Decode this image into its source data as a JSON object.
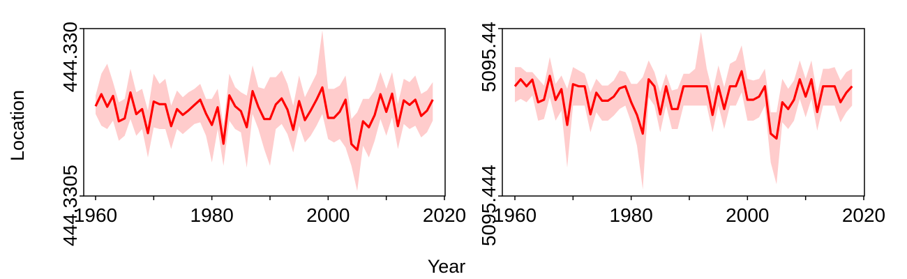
{
  "colors": {
    "line": "#ff0000",
    "band": "#ffcccc",
    "axis": "#000000",
    "background": "#ffffff"
  },
  "labels": {
    "xlabel": "Year",
    "ylabel": "Location"
  },
  "chart_data": [
    {
      "type": "line",
      "xlabel": "Year",
      "ylabel": "Location",
      "xlim": [
        1960,
        2020
      ],
      "ylim": [
        444.3305,
        444.33
      ],
      "x_ticks": [
        "1960",
        "1980",
        "2000",
        "2020"
      ],
      "y_ticks": [
        "444.330",
        "444.3305"
      ],
      "y_tick_labels_shown": [
        "444.330",
        "444.3305"
      ],
      "series": [
        {
          "x": [
            1960,
            1961,
            1962,
            1963,
            1964,
            1965,
            1966,
            1967,
            1968,
            1969,
            1970,
            1971,
            1972,
            1973,
            1974,
            1975,
            1976,
            1977,
            1978,
            1979,
            1980,
            1981,
            1982,
            1983,
            1984,
            1985,
            1986,
            1987,
            1988,
            1989,
            1990,
            1991,
            1992,
            1993,
            1994,
            1995,
            1996,
            1997,
            1998,
            1999,
            2000,
            2001,
            2002,
            2003,
            2004,
            2005,
            2006,
            2007,
            2008,
            2009,
            2010,
            2011,
            2012,
            2013,
            2014,
            2015,
            2016,
            2017,
            2018
          ],
          "y": [
            0.5363,
            0.6082,
            0.5328,
            0.5978,
            0.4462,
            0.4635,
            0.6189,
            0.4892,
            0.5192,
            0.3753,
            0.5642,
            0.5485,
            0.5485,
            0.4169,
            0.5191,
            0.4846,
            0.5115,
            0.5442,
            0.5751,
            0.4918,
            0.4247,
            0.5299,
            0.3125,
            0.6013,
            0.5364,
            0.5072,
            0.4107,
            0.6265,
            0.5323,
            0.4595,
            0.4595,
            0.5469,
            0.5829,
            0.5164,
            0.3949,
            0.5669,
            0.4535,
            0.5103,
            0.5753,
            0.6488,
            0.4668,
            0.4668,
            0.5037,
            0.5753,
            0.3106,
            0.2756,
            0.4462,
            0.4103,
            0.4831,
            0.6082,
            0.5023,
            0.6112,
            0.4172,
            0.5714,
            0.5443,
            0.5752,
            0.4785,
            0.5095,
            0.5753
          ],
          "lower": [
            0.49,
            0.42,
            0.4,
            0.45,
            0.33,
            0.36,
            0.46,
            0.36,
            0.4,
            0.23,
            0.41,
            0.4,
            0.4,
            0.28,
            0.4,
            0.37,
            0.4,
            0.43,
            0.44,
            0.36,
            0.2,
            0.4,
            0.18,
            0.45,
            0.4,
            0.38,
            0.17,
            0.49,
            0.4,
            0.28,
            0.18,
            0.4,
            0.43,
            0.37,
            0.26,
            0.42,
            0.32,
            0.36,
            0.42,
            0.49,
            0.34,
            0.32,
            0.34,
            0.29,
            0.18,
            0.03,
            0.3,
            0.23,
            0.33,
            0.46,
            0.36,
            0.47,
            0.28,
            0.43,
            0.4,
            0.42,
            0.35,
            0.38,
            0.45
          ],
          "upper": [
            0.6,
            0.73,
            0.79,
            0.68,
            0.56,
            0.58,
            0.76,
            0.62,
            0.64,
            0.51,
            0.73,
            0.67,
            0.7,
            0.54,
            0.63,
            0.59,
            0.62,
            0.64,
            0.67,
            0.58,
            0.58,
            0.64,
            0.42,
            0.73,
            0.65,
            0.62,
            0.6,
            0.78,
            0.65,
            0.64,
            0.71,
            0.71,
            0.75,
            0.67,
            0.54,
            0.72,
            0.59,
            0.66,
            0.73,
            0.99,
            0.64,
            0.64,
            0.66,
            0.72,
            0.46,
            0.5,
            0.58,
            0.58,
            0.63,
            0.74,
            0.64,
            0.74,
            0.55,
            0.7,
            0.68,
            0.72,
            0.61,
            0.63,
            0.68
          ]
        }
      ]
    },
    {
      "type": "line",
      "xlabel": "Year",
      "ylabel": "Location",
      "xlim": [
        1960,
        2020
      ],
      "ylim": [
        5095.444,
        5095.44
      ],
      "x_ticks": [
        "1960",
        "1980",
        "2000",
        "2020"
      ],
      "y_tick_labels_shown": [
        "5095.44",
        "5095.444"
      ],
      "series": [
        {
          "x": [
            1960,
            1961,
            1962,
            1963,
            1964,
            1965,
            1966,
            1967,
            1968,
            1969,
            1970,
            1971,
            1972,
            1973,
            1974,
            1975,
            1976,
            1977,
            1978,
            1979,
            1980,
            1981,
            1982,
            1983,
            1984,
            1985,
            1986,
            1987,
            1988,
            1989,
            1990,
            1991,
            1992,
            1993,
            1994,
            1995,
            1996,
            1997,
            1998,
            1999,
            2000,
            2001,
            2002,
            2003,
            2004,
            2005,
            2006,
            2007,
            2008,
            2009,
            2010,
            2011,
            2012,
            2013,
            2014,
            2015,
            2016,
            2017,
            2018
          ],
          "y": [
            0.6553,
            0.6972,
            0.6553,
            0.695,
            0.5599,
            0.5751,
            0.7173,
            0.5743,
            0.6385,
            0.4245,
            0.668,
            0.6553,
            0.6553,
            0.488,
            0.6172,
            0.5692,
            0.5692,
            0.5938,
            0.6431,
            0.6553,
            0.5599,
            0.4842,
            0.3723,
            0.6972,
            0.6553,
            0.488,
            0.6553,
            0.5196,
            0.5196,
            0.6553,
            0.6553,
            0.6553,
            0.6553,
            0.6553,
            0.4842,
            0.6553,
            0.5196,
            0.6553,
            0.6553,
            0.7456,
            0.5751,
            0.5751,
            0.5938,
            0.6553,
            0.3723,
            0.3435,
            0.5599,
            0.5196,
            0.5751,
            0.6972,
            0.5938,
            0.6972,
            0.5017,
            0.6553,
            0.6553,
            0.6553,
            0.5599,
            0.6172,
            0.6553
          ],
          "lower": [
            0.56,
            0.58,
            0.56,
            0.6,
            0.45,
            0.46,
            0.59,
            0.45,
            0.51,
            0.17,
            0.54,
            0.54,
            0.54,
            0.38,
            0.5,
            0.45,
            0.45,
            0.48,
            0.52,
            0.54,
            0.44,
            0.3,
            0.04,
            0.59,
            0.54,
            0.38,
            0.54,
            0.4,
            0.4,
            0.54,
            0.54,
            0.54,
            0.54,
            0.54,
            0.38,
            0.54,
            0.4,
            0.54,
            0.54,
            0.62,
            0.45,
            0.45,
            0.47,
            0.54,
            0.2,
            0.07,
            0.44,
            0.4,
            0.45,
            0.58,
            0.47,
            0.58,
            0.39,
            0.54,
            0.54,
            0.54,
            0.44,
            0.5,
            0.54
          ],
          "upper": [
            0.77,
            0.77,
            0.74,
            0.74,
            0.7,
            0.66,
            0.83,
            0.67,
            0.72,
            0.64,
            0.77,
            0.75,
            0.73,
            0.62,
            0.7,
            0.66,
            0.66,
            0.69,
            0.75,
            0.74,
            0.67,
            0.67,
            0.71,
            0.81,
            0.74,
            0.62,
            0.73,
            0.63,
            0.64,
            0.73,
            0.73,
            0.76,
            0.98,
            0.76,
            0.62,
            0.78,
            0.65,
            0.79,
            0.81,
            0.9,
            0.7,
            0.69,
            0.7,
            0.76,
            0.5,
            0.5,
            0.7,
            0.64,
            0.69,
            0.81,
            0.7,
            0.81,
            0.61,
            0.76,
            0.76,
            0.77,
            0.69,
            0.74,
            0.76
          ]
        }
      ]
    }
  ]
}
